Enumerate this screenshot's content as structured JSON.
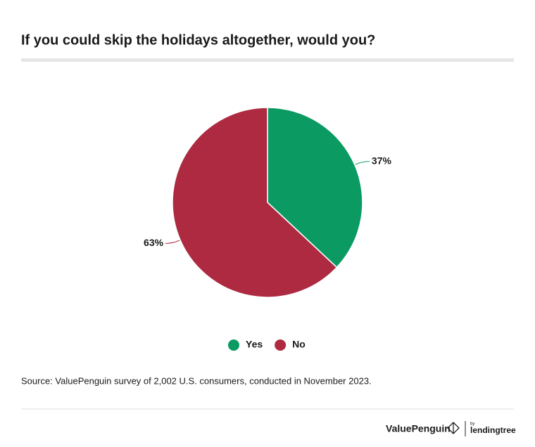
{
  "chart_data": {
    "type": "pie",
    "title": "If you could skip the holidays altogether, would you?",
    "categories": [
      "Yes",
      "No"
    ],
    "values": [
      37,
      63
    ],
    "value_labels": [
      "37%",
      "63%"
    ],
    "colors": [
      "#0a9a62",
      "#ad2a40"
    ],
    "legend": "bottom"
  },
  "source": "Source: ValuePenguin survey of 2,002 U.S. consumers, conducted in November 2023.",
  "branding": {
    "brand": "ValuePenguin",
    "by": "by",
    "partner": "lendingtree"
  }
}
